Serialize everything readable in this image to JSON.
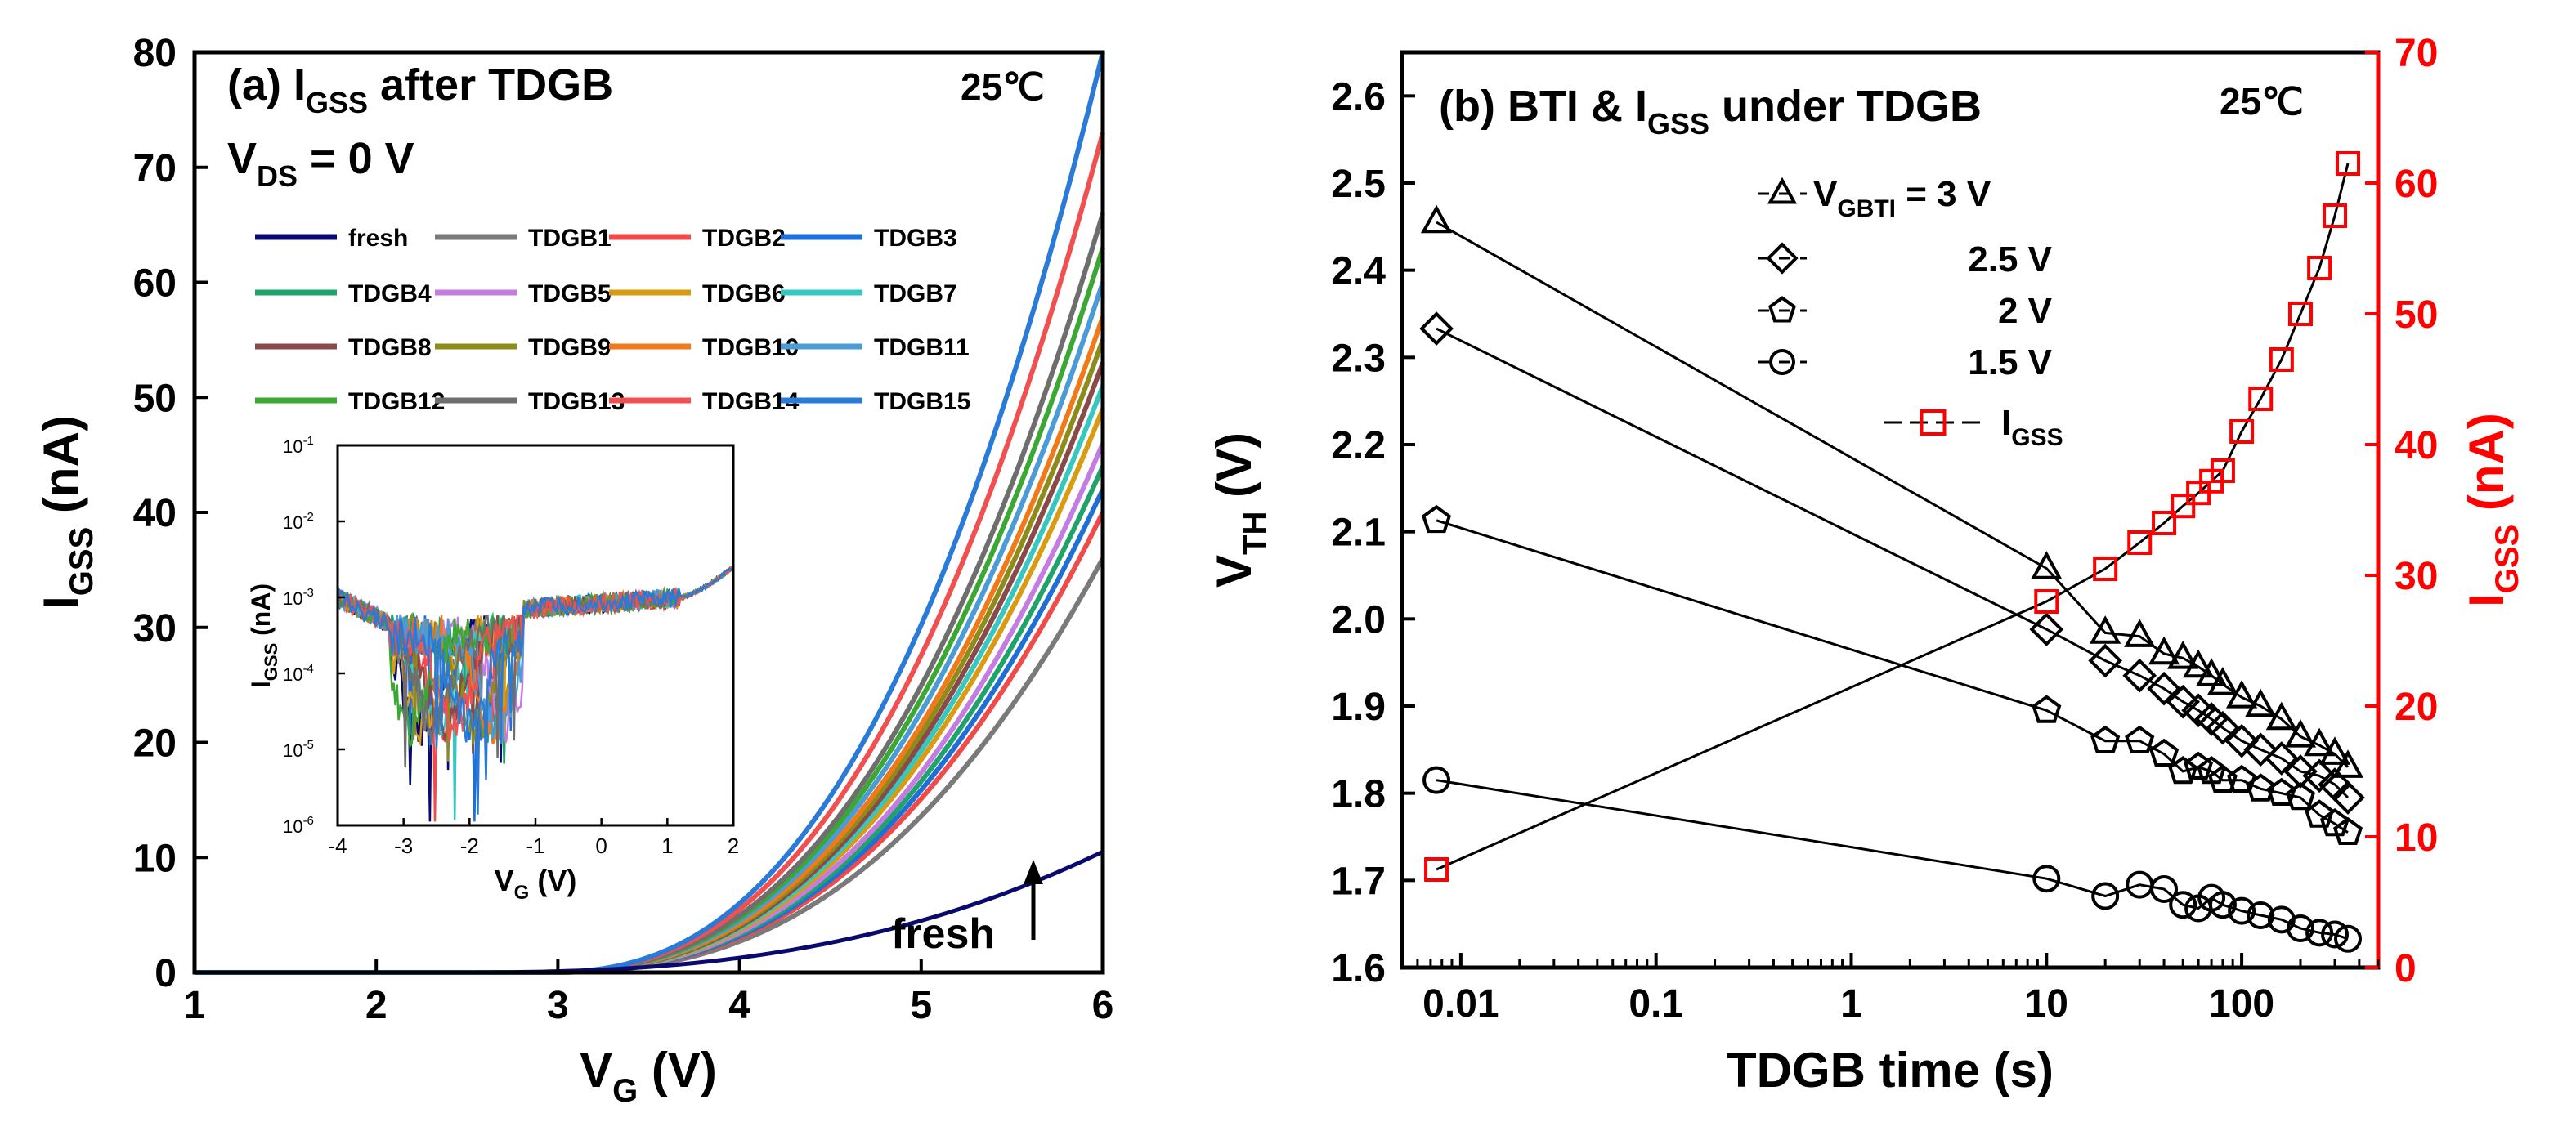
{
  "chart_data": [
    {
      "panel": "a",
      "type": "line",
      "title_prefix": "(a) I",
      "title_sub": "GSS",
      "title_suffix": " after TDGB",
      "temperature": "25℃",
      "condition_prefix": "V",
      "condition_sub": "DS",
      "condition_suffix": " = 0 V",
      "xlabel_main": "V",
      "xlabel_sub": "G",
      "xlabel_suffix": " (V)",
      "ylabel_main": "I",
      "ylabel_sub": "GSS",
      "ylabel_suffix": " (nA)",
      "xlim": [
        1,
        6
      ],
      "ylim": [
        0,
        80
      ],
      "xticks": [
        "1",
        "2",
        "3",
        "4",
        "5",
        "6"
      ],
      "yticks": [
        "0",
        "10",
        "20",
        "30",
        "40",
        "50",
        "60",
        "70",
        "80"
      ],
      "annotation": "fresh",
      "series": [
        {
          "name": "fresh",
          "color": "#0a0a6e",
          "value_at_6V": 10.5
        },
        {
          "name": "TDGB1",
          "color": "#7a7a7a",
          "value_at_6V": 36
        },
        {
          "name": "TDGB2",
          "color": "#f04b4b",
          "value_at_6V": 40
        },
        {
          "name": "TDGB3",
          "color": "#1f6fd6",
          "value_at_6V": 42
        },
        {
          "name": "TDGB4",
          "color": "#1fa36b",
          "value_at_6V": 44
        },
        {
          "name": "TDGB5",
          "color": "#c57ce0",
          "value_at_6V": 46
        },
        {
          "name": "TDGB6",
          "color": "#d99b12",
          "value_at_6V": 49
        },
        {
          "name": "TDGB7",
          "color": "#35c7c0",
          "value_at_6V": 51
        },
        {
          "name": "TDGB8",
          "color": "#8a4a4a",
          "value_at_6V": 53
        },
        {
          "name": "TDGB9",
          "color": "#8c8c1a",
          "value_at_6V": 55
        },
        {
          "name": "TDGB10",
          "color": "#f07a1a",
          "value_at_6V": 57
        },
        {
          "name": "TDGB11",
          "color": "#4a9bd6",
          "value_at_6V": 60
        },
        {
          "name": "TDGB12",
          "color": "#3aa832",
          "value_at_6V": 63
        },
        {
          "name": "TDGB13",
          "color": "#6e6e6e",
          "value_at_6V": 66
        },
        {
          "name": "TDGB14",
          "color": "#f05050",
          "value_at_6V": 73
        },
        {
          "name": "TDGB15",
          "color": "#2a7ad8",
          "value_at_6V": 80
        }
      ],
      "inset": {
        "type": "line",
        "yscale": "log",
        "xlim": [
          -4,
          2
        ],
        "ylim_exponents": [
          -6,
          -1
        ],
        "xticks": [
          "-4",
          "-3",
          "-2",
          "-1",
          "0",
          "1",
          "2"
        ],
        "yticks": [
          "10",
          "10",
          "10",
          "10",
          "10",
          "10"
        ],
        "ytick_exponents": [
          "-6",
          "-5",
          "-4",
          "-3",
          "-2",
          "-1"
        ],
        "xlabel_main": "V",
        "xlabel_sub": "G",
        "xlabel_suffix": " (V)",
        "ylabel_main": "I",
        "ylabel_sub": "GSS",
        "ylabel_suffix": " (nA)"
      }
    },
    {
      "panel": "b",
      "type": "scatter",
      "title_prefix": "(b) BTI & I",
      "title_sub": "GSS",
      "title_suffix": " under TDGB",
      "temperature": "25℃",
      "xlabel": "TDGB time (s)",
      "ylabel_main": "V",
      "ylabel_sub": "TH",
      "ylabel_suffix": " (V)",
      "y2label_main": "I",
      "y2label_sub": "GSS",
      "y2label_suffix": " (nA)",
      "xscale": "log",
      "xlim": [
        0.005,
        500
      ],
      "ylim": [
        1.6,
        2.65
      ],
      "y2lim": [
        0,
        70
      ],
      "xticks": [
        "0.01",
        "0.1",
        "1",
        "10",
        "100"
      ],
      "yticks": [
        "1.6",
        "1.7",
        "1.8",
        "1.9",
        "2.0",
        "2.1",
        "2.2",
        "2.3",
        "2.4",
        "2.5",
        "2.6"
      ],
      "y2ticks": [
        "0",
        "10",
        "20",
        "30",
        "40",
        "50",
        "60",
        "70"
      ],
      "legend": {
        "vgbti_prefix": "V",
        "vgbti_sub": "GBTI",
        "vgbti_suffix": " = 3 V",
        "entries": [
          "2.5 V",
          "2 V",
          "1.5 V"
        ],
        "igss_main": "I",
        "igss_sub": "GSS"
      },
      "x": [
        0.0075,
        10,
        20,
        30,
        40,
        50,
        60,
        70,
        80,
        100,
        125,
        160,
        200,
        250,
        300,
        350
      ],
      "series": [
        {
          "name": "3 V",
          "marker": "triangle",
          "values": [
            2.455,
            2.058,
            1.984,
            1.98,
            1.96,
            1.955,
            1.945,
            1.935,
            1.925,
            1.91,
            1.9,
            1.885,
            1.865,
            1.855,
            1.845,
            1.83
          ]
        },
        {
          "name": "2.5 V",
          "marker": "diamond",
          "values": [
            2.333,
            1.988,
            1.952,
            1.935,
            1.92,
            1.905,
            1.895,
            1.885,
            1.875,
            1.86,
            1.85,
            1.84,
            1.825,
            1.82,
            1.81,
            1.795
          ]
        },
        {
          "name": "2 V",
          "marker": "pentagon",
          "values": [
            2.113,
            1.895,
            1.86,
            1.86,
            1.845,
            1.825,
            1.83,
            1.825,
            1.815,
            1.815,
            1.805,
            1.8,
            1.795,
            1.775,
            1.765,
            1.755
          ]
        },
        {
          "name": "1.5 V",
          "marker": "circle",
          "values": [
            1.815,
            1.702,
            1.682,
            1.695,
            1.69,
            1.672,
            1.668,
            1.68,
            1.672,
            1.665,
            1.66,
            1.655,
            1.645,
            1.64,
            1.638,
            1.633
          ]
        }
      ],
      "igss_series": {
        "name": "IGSS",
        "color": "#ff0000",
        "values": [
          7.5,
          28,
          30.5,
          32.5,
          34,
          35.3,
          36.3,
          37.2,
          38,
          41,
          43.5,
          46.5,
          50,
          53.5,
          57.5,
          61.5
        ]
      }
    }
  ]
}
